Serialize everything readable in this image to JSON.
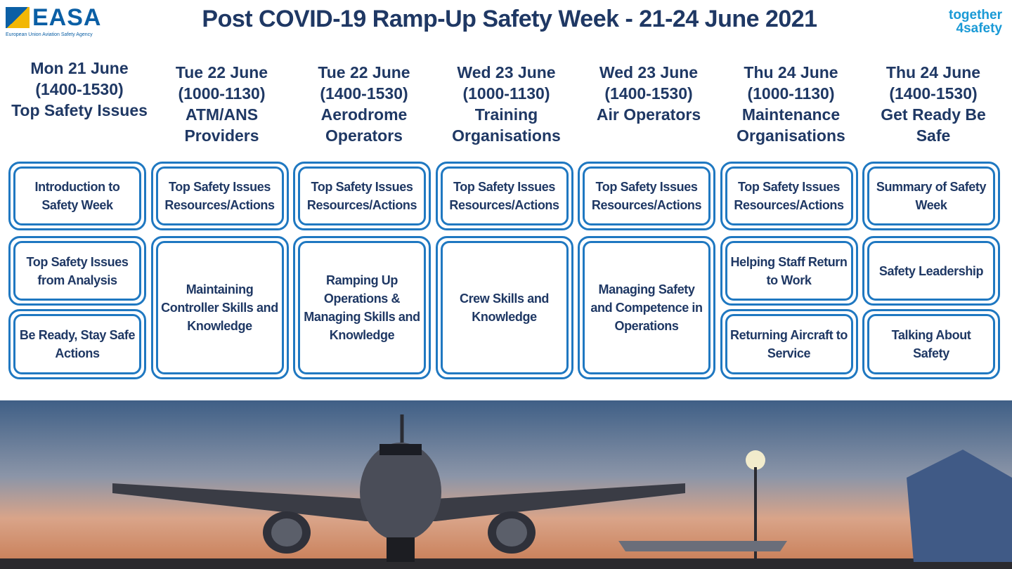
{
  "header": {
    "logo": "EASA",
    "agency": "European Union Aviation Safety Agency",
    "title": "Post COVID-19 Ramp-Up Safety Week - 21-24 June 2021",
    "tagline": [
      "together",
      "4safety"
    ]
  },
  "columns": [
    {
      "day": "Mon 21 June",
      "time": "(1400-1530)",
      "topic": "Top Safety Issues",
      "sessions": [
        "Introduction to Safety Week",
        "Top Safety Issues from Analysis",
        "Be Ready, Stay Safe Actions"
      ]
    },
    {
      "day": "Tue 22 June",
      "time": "(1000-1130)",
      "topic": "ATM/ANS Providers",
      "sessions": [
        "Top Safety Issues Resources/Actions",
        "Maintaining Controller Skills and Knowledge"
      ]
    },
    {
      "day": "Tue 22 June",
      "time": "(1400-1530)",
      "topic": "Aerodrome Operators",
      "sessions": [
        "Top Safety Issues Resources/Actions",
        "Ramping Up Operations & Managing Skills and Knowledge"
      ]
    },
    {
      "day": "Wed 23 June",
      "time": "(1000-1130)",
      "topic": "Training Organisations",
      "sessions": [
        "Top Safety Issues Resources/Actions",
        "Crew Skills and Knowledge"
      ]
    },
    {
      "day": "Wed 23 June",
      "time": "(1400-1530)",
      "topic": "Air Operators",
      "sessions": [
        "Top Safety Issues Resources/Actions",
        "Managing Safety and Competence in Operations"
      ]
    },
    {
      "day": "Thu 24 June",
      "time": "(1000-1130)",
      "topic": "Maintenance Organisations",
      "sessions": [
        "Top Safety Issues Resources/Actions",
        "Helping Staff Return to Work",
        "Returning Aircraft to Service"
      ]
    },
    {
      "day": "Thu 24 June",
      "time": "(1400-1530)",
      "topic": "Get Ready Be Safe",
      "sessions": [
        "Summary of Safety Week",
        "Safety Leadership",
        "Talking About Safety"
      ]
    }
  ]
}
